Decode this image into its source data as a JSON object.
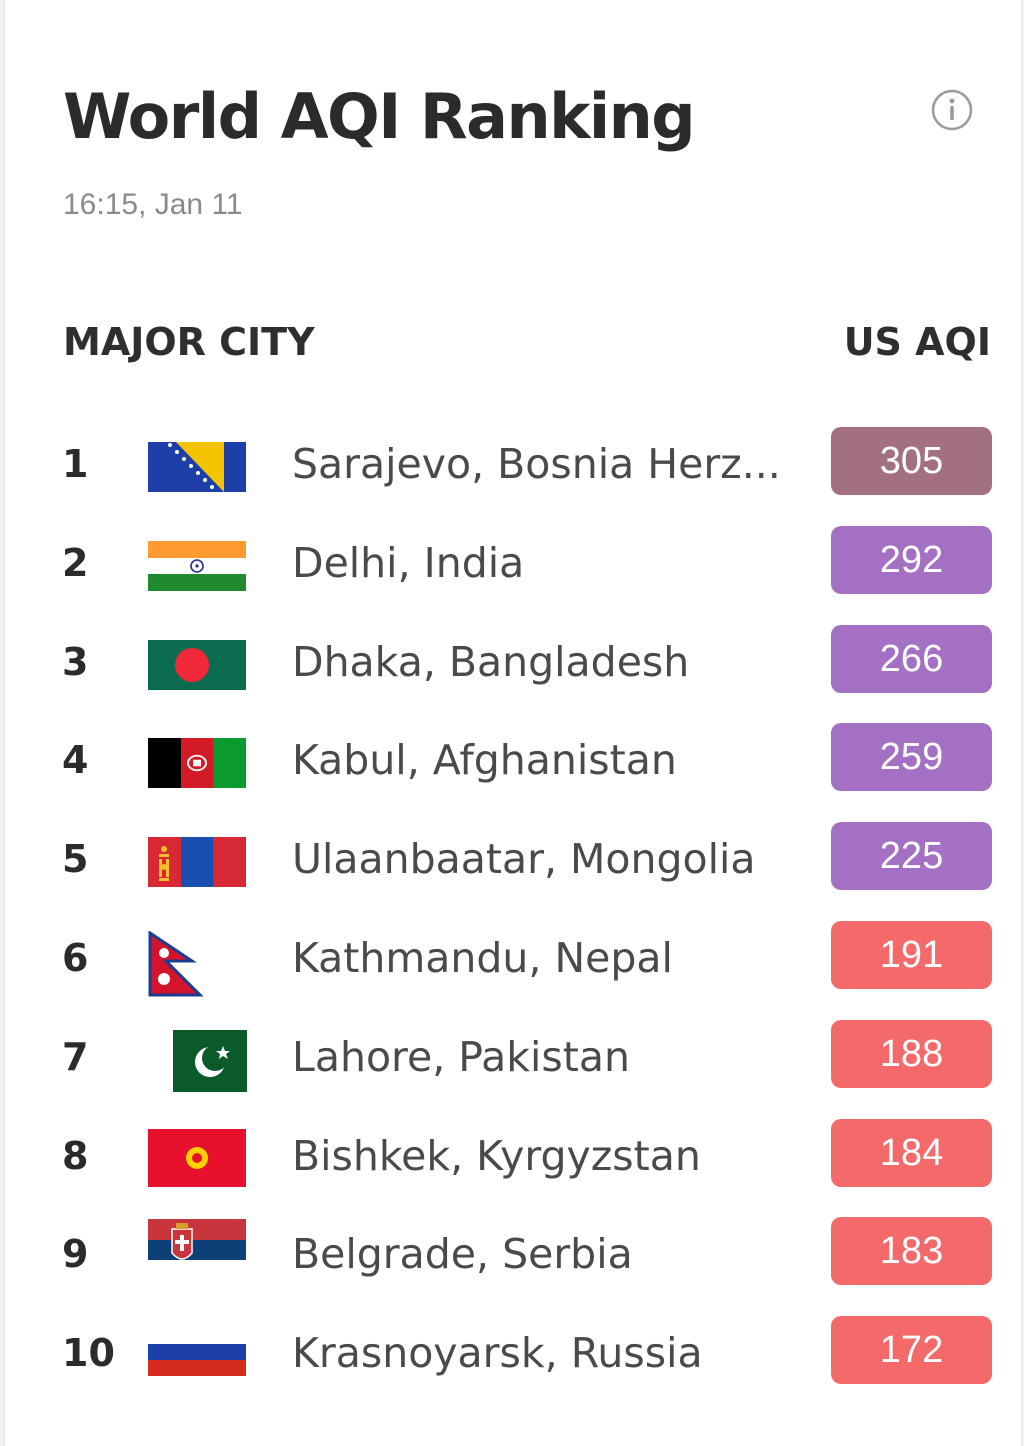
{
  "header": {
    "title": "World AQI Ranking",
    "timestamp": "16:15, Jan 11",
    "info_icon": "info-circle-icon"
  },
  "columns": {
    "city": "MAJOR CITY",
    "aqi": "US AQI"
  },
  "colors": {
    "hazardous": "#a3707f",
    "very_unhealthy": "#a470c3",
    "unhealthy": "#f46a6b"
  },
  "rows": [
    {
      "rank": "1",
      "city": "Sarajevo, Bosnia Herz...",
      "aqi": "305",
      "flag": "bosnia-flag-icon",
      "color": "#a3707f"
    },
    {
      "rank": "2",
      "city": "Delhi, India",
      "aqi": "292",
      "flag": "india-flag-icon",
      "color": "#a470c3"
    },
    {
      "rank": "3",
      "city": "Dhaka, Bangladesh",
      "aqi": "266",
      "flag": "bangladesh-flag-icon",
      "color": "#a470c3"
    },
    {
      "rank": "4",
      "city": "Kabul, Afghanistan",
      "aqi": "259",
      "flag": "afghanistan-flag-icon",
      "color": "#a470c3"
    },
    {
      "rank": "5",
      "city": "Ulaanbaatar, Mongolia",
      "aqi": "225",
      "flag": "mongolia-flag-icon",
      "color": "#a470c3"
    },
    {
      "rank": "6",
      "city": "Kathmandu, Nepal",
      "aqi": "191",
      "flag": "nepal-flag-icon",
      "color": "#f46a6b"
    },
    {
      "rank": "7",
      "city": "Lahore, Pakistan",
      "aqi": "188",
      "flag": "pakistan-flag-icon",
      "color": "#f46a6b"
    },
    {
      "rank": "8",
      "city": "Bishkek, Kyrgyzstan",
      "aqi": "184",
      "flag": "kyrgyzstan-flag-icon",
      "color": "#f46a6b"
    },
    {
      "rank": "9",
      "city": "Belgrade, Serbia",
      "aqi": "183",
      "flag": "serbia-flag-icon",
      "color": "#f46a6b"
    },
    {
      "rank": "10",
      "city": "Krasnoyarsk, Russia",
      "aqi": "172",
      "flag": "russia-flag-icon",
      "color": "#f46a6b"
    }
  ]
}
